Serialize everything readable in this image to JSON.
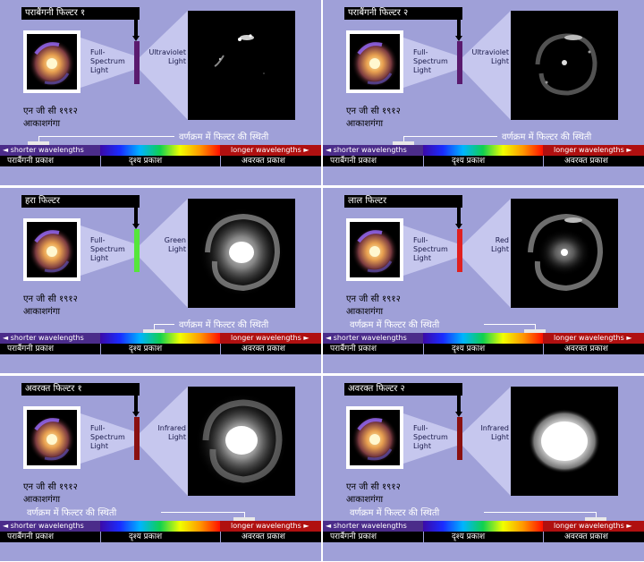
{
  "full_spectrum": "Full-\nSpectrum\nLight",
  "ngc_label": "एन जी सी १९१२\nआकाशगंगा",
  "filter_position": "वर्णक्रम में फिल्टर की स्थिती",
  "shorter": "◄ shorter wavelengths",
  "longer": "longer wavelengths ►",
  "uv_name": "पराबैंगनी प्रकाश",
  "visible_name": "दृश्य प्रकाश",
  "ir_name": "अवरक्त प्रकाश",
  "colors": {
    "panel": "#9fa0d8",
    "uv": "#5a1a6e",
    "green": "#55e63a",
    "red": "#e02020",
    "ir": "#8a1010"
  },
  "panels": [
    {
      "title": "पराबैंगनी फिल्टर १",
      "light": "Ultraviolet\nLight",
      "filter_color": "#5a1a6e",
      "marker_pos": 0.12,
      "image": "uv1"
    },
    {
      "title": "पराबैंगनी फिल्टर २",
      "light": "Ultraviolet\nLight",
      "filter_color": "#5a1a6e",
      "marker_pos": 0.25,
      "image": "uv2"
    },
    {
      "title": "हरा फिल्टर",
      "light": "Green\nLight",
      "filter_color": "#55e63a",
      "marker_pos": 0.48,
      "image": "green"
    },
    {
      "title": "लाल फिल्टर",
      "light": "Red\nLight",
      "filter_color": "#e02020",
      "marker_pos": 0.66,
      "image": "red"
    },
    {
      "title": "अवरक्त फिल्टर १",
      "light": "Infrared\nLight",
      "filter_color": "#8a1010",
      "marker_pos": 0.76,
      "image": "ir1"
    },
    {
      "title": "अवरक्त फिल्टर २",
      "light": "Infrared\nLight",
      "filter_color": "#8a1010",
      "marker_pos": 0.85,
      "image": "ir2"
    }
  ]
}
